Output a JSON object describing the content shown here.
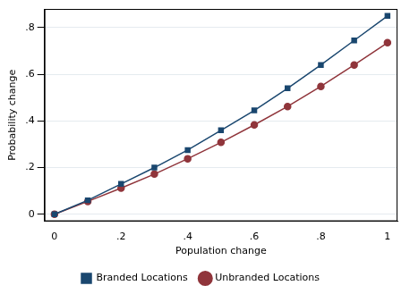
{
  "chart_data": {
    "type": "line",
    "x_label": "Population change",
    "y_label": "Probability change",
    "x": [
      0,
      0.1,
      0.2,
      0.3,
      0.4,
      0.5,
      0.6,
      0.7,
      0.8,
      0.9,
      1
    ],
    "series": [
      {
        "name": "Branded Locations",
        "color": "#1a476f",
        "marker": "square",
        "line_style": "solid",
        "values": [
          0,
          0.06,
          0.13,
          0.2,
          0.275,
          0.36,
          0.445,
          0.54,
          0.64,
          0.745,
          0.85
        ]
      },
      {
        "name": "Unbranded Locations",
        "color": "#90353b",
        "marker": "circle",
        "line_style": "solid",
        "values": [
          0,
          0.055,
          0.112,
          0.172,
          0.238,
          0.308,
          0.383,
          0.462,
          0.548,
          0.64,
          0.735
        ]
      }
    ],
    "xlim": [
      -0.03,
      1.03
    ],
    "xticks": [
      0,
      {
        "value": 0.2,
        "label": ".2"
      },
      {
        "value": 0.4,
        "label": ".4"
      },
      {
        "value": 0.6,
        "label": ".6"
      },
      {
        "value": 0.8,
        "label": ".8"
      },
      1
    ],
    "ylim": [
      -0.03,
      0.88
    ],
    "yticks": [
      0,
      {
        "value": 0.2,
        "label": ".2"
      },
      {
        "value": 0.4,
        "label": ".4"
      },
      {
        "value": 0.6,
        "label": ".6"
      },
      {
        "value": 0.8,
        "label": ".8"
      }
    ],
    "grid": true,
    "legend": "bottom"
  }
}
